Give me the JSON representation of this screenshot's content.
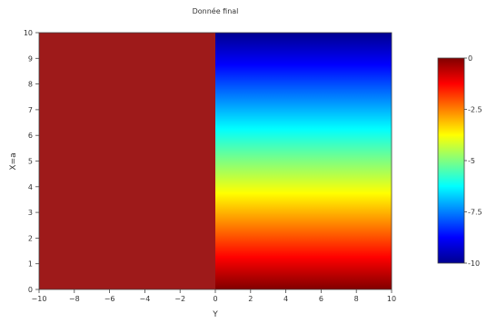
{
  "chart_data": {
    "type": "heatmap",
    "title": "Donnée final",
    "xlabel": "Y",
    "ylabel": "X=a",
    "xlim": [
      -10,
      10
    ],
    "ylim": [
      0,
      10
    ],
    "xticks": [
      -10,
      -8,
      -6,
      -4,
      -2,
      0,
      2,
      4,
      6,
      8,
      10
    ],
    "xtick_labels": [
      "−10",
      "−8",
      "−6",
      "−4",
      "−2",
      "0",
      "2",
      "4",
      "6",
      "8",
      "10"
    ],
    "yticks": [
      0,
      1,
      2,
      3,
      4,
      5,
      6,
      7,
      8,
      9,
      10
    ],
    "ytick_labels": [
      "0",
      "1",
      "2",
      "3",
      "4",
      "5",
      "6",
      "7",
      "8",
      "9",
      "10"
    ],
    "regions": [
      {
        "y_range": [
          -10,
          0
        ],
        "value": 0
      },
      {
        "y_range": [
          0,
          10
        ],
        "value_at_x0": 0,
        "value_at_x10": -10
      }
    ],
    "colorbar": {
      "range": [
        -10,
        0
      ],
      "ticks": [
        0,
        -2.5,
        -5,
        -7.5,
        -10
      ],
      "tick_labels": [
        "0",
        "-2.5",
        "-5",
        "-7.5",
        "-10"
      ],
      "colormap": "jet",
      "colors": [
        "#00008f",
        "#0000ff",
        "#0080ff",
        "#00ffff",
        "#80ff80",
        "#ffff00",
        "#ff8000",
        "#ff0000",
        "#800000"
      ]
    }
  }
}
